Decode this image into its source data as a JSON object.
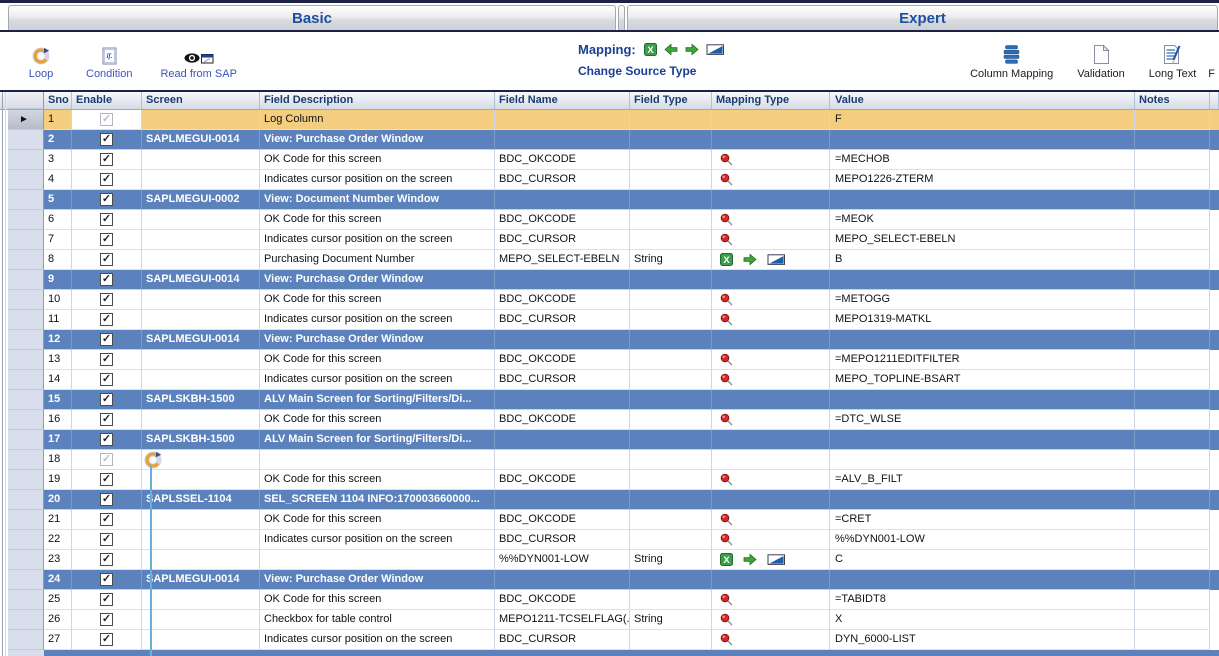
{
  "tabs": [
    {
      "label": "Basic"
    },
    {
      "label": "Expert"
    }
  ],
  "toolbar": {
    "left_buttons": [
      {
        "label": "Loop",
        "icon": "loop-icon"
      },
      {
        "label": "Condition",
        "icon": "condition-icon"
      },
      {
        "label": "Read from SAP",
        "icon": "read-from-sap-icon"
      }
    ],
    "mapping": {
      "label": "Mapping:",
      "icons": [
        "excel-icon",
        "arrow-left-icon",
        "arrow-right-icon",
        "fixed-value-icon"
      ],
      "change_source_label": "Change Source Type"
    },
    "right_buttons": [
      {
        "label": "Column Mapping",
        "icon": "column-mapping-icon"
      },
      {
        "label": "Validation",
        "icon": "validation-icon"
      },
      {
        "label": "Long Text",
        "icon": "long-text-icon"
      },
      {
        "label": "F",
        "icon": "",
        "truncated": true
      }
    ]
  },
  "grid": {
    "columns": [
      "Sno",
      "Enable",
      "Screen",
      "Field Description",
      "Field Name",
      "Field Type",
      "Mapping Type",
      "Value",
      "Notes"
    ],
    "rows": [
      {
        "sno": "1",
        "kind": "log",
        "enable": "disabled",
        "screen": "",
        "desc": "Log Column",
        "fname": "",
        "ftype": "",
        "mapping": "",
        "value": "F",
        "notes": "",
        "selected": true
      },
      {
        "sno": "2",
        "kind": "group",
        "enable": "on",
        "screen": "SAPLMEGUI-0014",
        "desc": "View: Purchase Order Window",
        "fname": "",
        "ftype": "",
        "mapping": "",
        "value": "",
        "notes": ""
      },
      {
        "sno": "3",
        "kind": "field",
        "enable": "on",
        "screen": "",
        "desc": "OK Code for this screen",
        "fname": "BDC_OKCODE",
        "ftype": "",
        "mapping": "pin",
        "value": "=MECHOB",
        "notes": ""
      },
      {
        "sno": "4",
        "kind": "field",
        "enable": "on",
        "screen": "",
        "desc": "Indicates cursor position on the screen",
        "fname": "BDC_CURSOR",
        "ftype": "",
        "mapping": "pin",
        "value": "MEPO1226-ZTERM",
        "notes": ""
      },
      {
        "sno": "5",
        "kind": "group",
        "enable": "on",
        "screen": "SAPLMEGUI-0002",
        "desc": "View: Document Number Window",
        "fname": "",
        "ftype": "",
        "mapping": "",
        "value": "",
        "notes": ""
      },
      {
        "sno": "6",
        "kind": "field",
        "enable": "on",
        "screen": "",
        "desc": "OK Code for this screen",
        "fname": "BDC_OKCODE",
        "ftype": "",
        "mapping": "pin",
        "value": "=MEOK",
        "notes": ""
      },
      {
        "sno": "7",
        "kind": "field",
        "enable": "on",
        "screen": "",
        "desc": "Indicates cursor position on the screen",
        "fname": "BDC_CURSOR",
        "ftype": "",
        "mapping": "pin",
        "value": "MEPO_SELECT-EBELN",
        "notes": ""
      },
      {
        "sno": "8",
        "kind": "field",
        "enable": "on",
        "screen": "",
        "desc": "Purchasing Document Number",
        "fname": "MEPO_SELECT-EBELN",
        "ftype": "String",
        "mapping": "source",
        "value": "B",
        "notes": ""
      },
      {
        "sno": "9",
        "kind": "group",
        "enable": "on",
        "screen": "SAPLMEGUI-0014",
        "desc": "View: Purchase Order Window",
        "fname": "",
        "ftype": "",
        "mapping": "",
        "value": "",
        "notes": ""
      },
      {
        "sno": "10",
        "kind": "field",
        "enable": "on",
        "screen": "",
        "desc": "OK Code for this screen",
        "fname": "BDC_OKCODE",
        "ftype": "",
        "mapping": "pin",
        "value": "=METOGG",
        "notes": ""
      },
      {
        "sno": "11",
        "kind": "field",
        "enable": "on",
        "screen": "",
        "desc": "Indicates cursor position on the screen",
        "fname": "BDC_CURSOR",
        "ftype": "",
        "mapping": "pin",
        "value": "MEPO1319-MATKL",
        "notes": ""
      },
      {
        "sno": "12",
        "kind": "group",
        "enable": "on",
        "screen": "SAPLMEGUI-0014",
        "desc": "View: Purchase Order Window",
        "fname": "",
        "ftype": "",
        "mapping": "",
        "value": "",
        "notes": ""
      },
      {
        "sno": "13",
        "kind": "field",
        "enable": "on",
        "screen": "",
        "desc": "OK Code for this screen",
        "fname": "BDC_OKCODE",
        "ftype": "",
        "mapping": "pin",
        "value": "=MEPO1211EDITFILTER",
        "notes": ""
      },
      {
        "sno": "14",
        "kind": "field",
        "enable": "on",
        "screen": "",
        "desc": "Indicates cursor position on the screen",
        "fname": "BDC_CURSOR",
        "ftype": "",
        "mapping": "pin",
        "value": "MEPO_TOPLINE-BSART",
        "notes": ""
      },
      {
        "sno": "15",
        "kind": "group",
        "enable": "on",
        "screen": "SAPLSKBH-1500",
        "desc": "ALV Main Screen for Sorting/Filters/Di...",
        "fname": "",
        "ftype": "",
        "mapping": "",
        "value": "",
        "notes": ""
      },
      {
        "sno": "16",
        "kind": "field",
        "enable": "on",
        "screen": "",
        "desc": "OK Code for this screen",
        "fname": "BDC_OKCODE",
        "ftype": "",
        "mapping": "pin",
        "value": "=DTC_WLSE",
        "notes": ""
      },
      {
        "sno": "17",
        "kind": "group",
        "enable": "on",
        "screen": "SAPLSKBH-1500",
        "desc": "ALV Main Screen for Sorting/Filters/Di...",
        "fname": "",
        "ftype": "",
        "mapping": "",
        "value": "",
        "notes": ""
      },
      {
        "sno": "18",
        "kind": "loop",
        "enable": "disabled",
        "screen": "",
        "desc": "",
        "fname": "",
        "ftype": "",
        "mapping": "",
        "value": "",
        "notes": ""
      },
      {
        "sno": "19",
        "kind": "field",
        "enable": "on",
        "screen": "",
        "desc": "OK Code for this screen",
        "fname": "BDC_OKCODE",
        "ftype": "",
        "mapping": "pin",
        "value": "=ALV_B_FILT",
        "notes": ""
      },
      {
        "sno": "20",
        "kind": "group",
        "enable": "on",
        "screen": "SAPLSSEL-1104",
        "desc": "SEL_SCREEN 1104 INFO:170003660000...",
        "fname": "",
        "ftype": "",
        "mapping": "",
        "value": "",
        "notes": ""
      },
      {
        "sno": "21",
        "kind": "field",
        "enable": "on",
        "screen": "",
        "desc": "OK Code for this screen",
        "fname": "BDC_OKCODE",
        "ftype": "",
        "mapping": "pin",
        "value": "=CRET",
        "notes": ""
      },
      {
        "sno": "22",
        "kind": "field",
        "enable": "on",
        "screen": "",
        "desc": "Indicates cursor position on the screen",
        "fname": "BDC_CURSOR",
        "ftype": "",
        "mapping": "pin",
        "value": "%%DYN001-LOW",
        "notes": ""
      },
      {
        "sno": "23",
        "kind": "field",
        "enable": "on",
        "screen": "",
        "desc": "",
        "fname": "%%DYN001-LOW",
        "ftype": "String",
        "mapping": "source",
        "value": "C",
        "notes": ""
      },
      {
        "sno": "24",
        "kind": "group",
        "enable": "on",
        "screen": "SAPLMEGUI-0014",
        "desc": "View: Purchase Order Window",
        "fname": "",
        "ftype": "",
        "mapping": "",
        "value": "",
        "notes": ""
      },
      {
        "sno": "25",
        "kind": "field",
        "enable": "on",
        "screen": "",
        "desc": "OK Code for this screen",
        "fname": "BDC_OKCODE",
        "ftype": "",
        "mapping": "pin",
        "value": "=TABIDT8",
        "notes": ""
      },
      {
        "sno": "26",
        "kind": "field",
        "enable": "on",
        "screen": "",
        "desc": "Checkbox for table control",
        "fname": "MEPO1211-TCSELFLAG(...",
        "ftype": "String",
        "mapping": "pin",
        "value": "X",
        "notes": ""
      },
      {
        "sno": "27",
        "kind": "field",
        "enable": "on",
        "screen": "",
        "desc": "Indicates cursor position on the screen",
        "fname": "BDC_CURSOR",
        "ftype": "",
        "mapping": "pin",
        "value": "DYN_6000-LIST",
        "notes": ""
      }
    ]
  },
  "colors": {
    "group_row": "#5b82bc",
    "log_row": "#f4cd7e",
    "tab_text": "#1d4f9e",
    "toolbar_link_text": "#3b53c0",
    "header_text": "#1b3c70",
    "loop_scope_line": "#6aaede",
    "top_strip": "#1c2145",
    "pin_red": "#d42a2a",
    "excel_green": "#3c9e4d"
  }
}
